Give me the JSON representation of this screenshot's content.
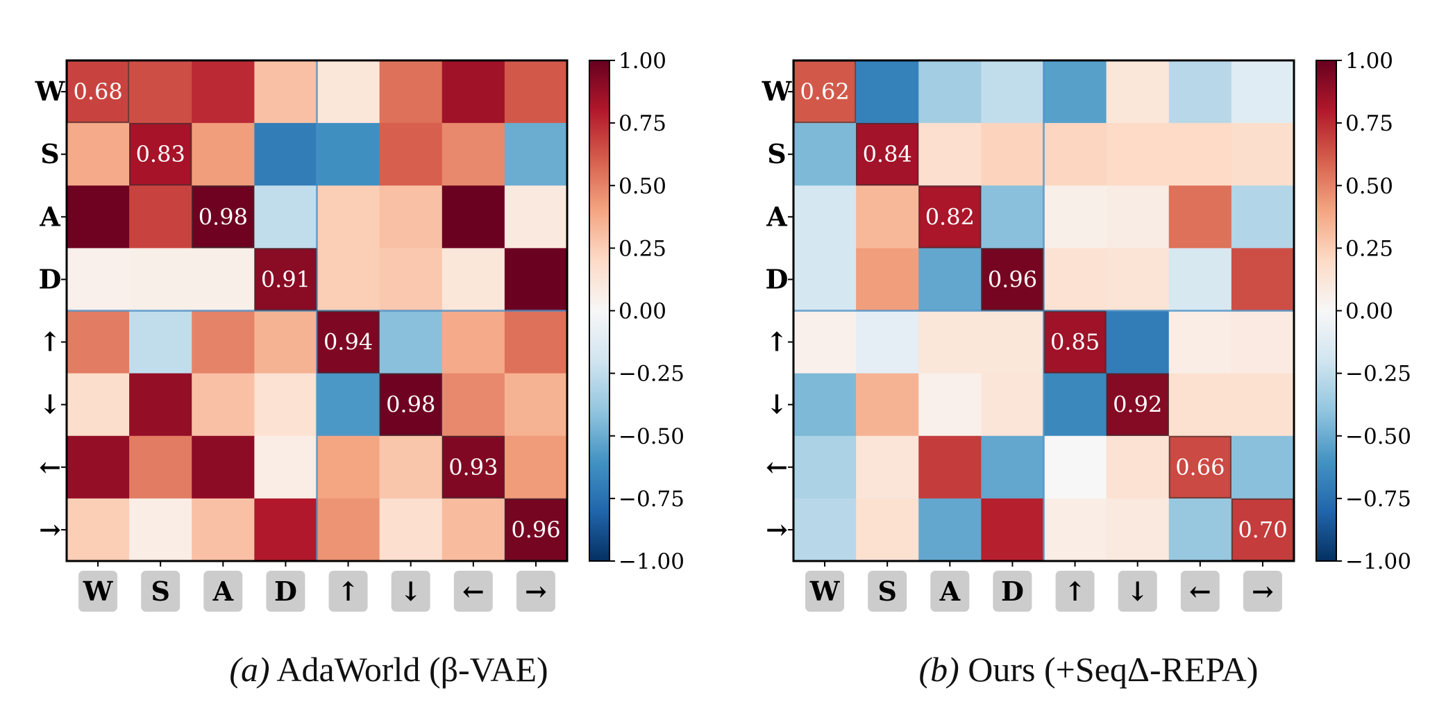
{
  "chart_data": [
    {
      "type": "heatmap",
      "caption_tag": "(a)",
      "caption": "AdaWorld (β-VAE)",
      "row_labels": [
        "W",
        "S",
        "A",
        "D",
        "↑",
        "↓",
        "←",
        "→"
      ],
      "col_labels": [
        "W",
        "S",
        "A",
        "D",
        "↑",
        "↓",
        "←",
        "→"
      ],
      "colormap": "RdBu_r",
      "vlim": [
        -1,
        1
      ],
      "colorbar_ticks": [
        "1.00",
        "0.75",
        "0.50",
        "0.25",
        "0.00",
        "−0.25",
        "−0.50",
        "−0.75",
        "−1.00"
      ],
      "annotated": "diagonal",
      "values": [
        [
          0.68,
          0.65,
          0.75,
          0.3,
          0.12,
          0.55,
          0.85,
          0.62
        ],
        [
          0.38,
          0.83,
          0.42,
          -0.7,
          -0.62,
          0.6,
          0.48,
          -0.5
        ],
        [
          0.98,
          0.68,
          0.98,
          -0.25,
          0.25,
          0.3,
          0.99,
          0.1
        ],
        [
          0.05,
          0.06,
          0.06,
          0.91,
          0.25,
          0.27,
          0.12,
          0.99
        ],
        [
          0.52,
          -0.25,
          0.5,
          0.35,
          0.94,
          -0.42,
          0.38,
          0.55
        ],
        [
          0.18,
          0.88,
          0.3,
          0.15,
          -0.58,
          0.98,
          0.48,
          0.35
        ],
        [
          0.88,
          0.52,
          0.9,
          0.07,
          0.4,
          0.28,
          0.93,
          0.43
        ],
        [
          0.25,
          0.07,
          0.3,
          0.8,
          0.45,
          0.17,
          0.32,
          0.96
        ]
      ],
      "diagonal_labels": [
        "0.68",
        "0.83",
        "0.98",
        "0.91",
        "0.94",
        "0.98",
        "0.93",
        "0.96"
      ]
    },
    {
      "type": "heatmap",
      "caption_tag": "(b)",
      "caption": "Ours (+SeqΔ-REPA)",
      "row_labels": [
        "W",
        "S",
        "A",
        "D",
        "↑",
        "↓",
        "←",
        "→"
      ],
      "col_labels": [
        "W",
        "S",
        "A",
        "D",
        "↑",
        "↓",
        "←",
        "→"
      ],
      "colormap": "RdBu_r",
      "vlim": [
        -1,
        1
      ],
      "colorbar_ticks": [
        "1.00",
        "0.75",
        "0.50",
        "0.25",
        "0.00",
        "−0.25",
        "−0.50",
        "−0.75",
        "−1.00"
      ],
      "annotated": "diagonal",
      "values": [
        [
          0.62,
          -0.68,
          -0.35,
          -0.25,
          -0.55,
          0.12,
          -0.28,
          -0.12
        ],
        [
          -0.45,
          0.84,
          0.17,
          0.23,
          0.22,
          0.2,
          0.2,
          0.18
        ],
        [
          -0.18,
          0.33,
          0.82,
          -0.42,
          0.06,
          0.08,
          0.55,
          -0.3
        ],
        [
          -0.18,
          0.42,
          -0.52,
          0.96,
          0.15,
          0.14,
          -0.17,
          0.65
        ],
        [
          0.05,
          -0.1,
          0.12,
          0.12,
          0.85,
          -0.7,
          0.07,
          0.09
        ],
        [
          -0.45,
          0.35,
          0.05,
          0.13,
          -0.65,
          0.92,
          0.16,
          0.16
        ],
        [
          -0.32,
          0.13,
          0.7,
          -0.52,
          0.0,
          0.15,
          0.66,
          -0.42
        ],
        [
          -0.28,
          0.16,
          -0.52,
          0.78,
          0.07,
          0.1,
          -0.38,
          0.7
        ]
      ],
      "diagonal_labels": [
        "0.62",
        "0.84",
        "0.82",
        "0.96",
        "0.85",
        "0.92",
        "0.66",
        "0.70"
      ]
    }
  ]
}
